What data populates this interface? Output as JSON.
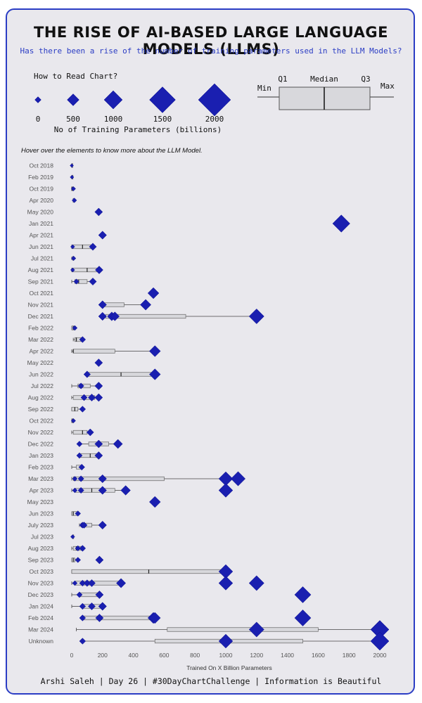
{
  "header": {
    "title": "THE RISE OF AI-BASED LARGE LANGUAGE MODELS (LLMS)",
    "subtitle": "Has there been a rise of the number of training parameters used in the LLM Models?"
  },
  "legend": {
    "how_to_read": "How to Read Chart?",
    "size_values": [
      "0",
      "500",
      "1000",
      "1500",
      "2000"
    ],
    "size_caption": "No of Training Parameters (billions)",
    "boxplot_labels": {
      "min": "Min",
      "q1": "Q1",
      "median": "Median",
      "q3": "Q3",
      "max": "Max"
    }
  },
  "hover_note": "Hover over the elements to know more about the LLM Model.",
  "footer": "Arshi Saleh | Day 26 | #30DayChartChallenge | Information is Beautiful",
  "colors": {
    "accent": "#1a1fb0",
    "box_fill": "#d8d8dc",
    "background": "#e9e8ed"
  },
  "chart_data": {
    "type": "box-and-scatter",
    "xlabel": "Trained On X Billion Parameters",
    "xlim": [
      0,
      2000
    ],
    "xticks": [
      0,
      200,
      400,
      600,
      800,
      1000,
      1200,
      1400,
      1600,
      1800,
      2000
    ],
    "grid": false,
    "rows": [
      {
        "label": "Oct 2018",
        "points": [
          0.34
        ],
        "box": [
          0.11,
          0.11,
          0.2,
          0.34,
          0.34
        ]
      },
      {
        "label": "Feb 2019",
        "points": [
          1.5
        ],
        "box": [
          1.5,
          1.5,
          1.5,
          1.5,
          1.5
        ]
      },
      {
        "label": "Oct 2019",
        "points": [
          11
        ],
        "box": [
          0.06,
          0.06,
          1.5,
          11,
          11
        ]
      },
      {
        "label": "Apr 2020",
        "points": [
          17
        ],
        "box": [
          9,
          9,
          17,
          17,
          17
        ]
      },
      {
        "label": "May 2020",
        "points": [
          175
        ],
        "box": null
      },
      {
        "label": "Jan 2021",
        "points": [
          1750
        ],
        "box": [
          1750,
          1750,
          1750,
          1750,
          1750
        ]
      },
      {
        "label": "Apr 2021",
        "points": [
          200
        ],
        "box": null
      },
      {
        "label": "Jun 2021",
        "points": [
          6,
          137
        ],
        "box": [
          0,
          0,
          70,
          137,
          137
        ]
      },
      {
        "label": "Jul 2021",
        "points": [
          12
        ],
        "box": [
          0,
          6,
          10,
          12,
          12
        ]
      },
      {
        "label": "Aug 2021",
        "points": [
          6,
          178
        ],
        "box": [
          0,
          0,
          100,
          178,
          178
        ]
      },
      {
        "label": "Sep 2021",
        "points": [
          30,
          137
        ],
        "box": [
          0,
          20,
          45,
          100,
          137
        ]
      },
      {
        "label": "Oct 2021",
        "points": [
          530
        ],
        "box": null
      },
      {
        "label": "Nov 2021",
        "points": [
          200,
          480
        ],
        "box": [
          200,
          200,
          200,
          340,
          480
        ]
      },
      {
        "label": "Dec 2021",
        "points": [
          200,
          260,
          280,
          1200
        ],
        "box": [
          200,
          220,
          280,
          740,
          1200
        ]
      },
      {
        "label": "Feb 2022",
        "points": [
          20
        ],
        "box": [
          0,
          0,
          10,
          20,
          20
        ]
      },
      {
        "label": "Mar 2022",
        "points": [
          70
        ],
        "box": [
          10,
          20,
          30,
          60,
          70
        ]
      },
      {
        "label": "Apr 2022",
        "points": [
          540
        ],
        "box": [
          0,
          10,
          10,
          280,
          540
        ]
      },
      {
        "label": "May 2022",
        "points": [
          175
        ],
        "box": null
      },
      {
        "label": "Jun 2022",
        "points": [
          100,
          540
        ],
        "box": [
          100,
          100,
          320,
          540,
          540
        ]
      },
      {
        "label": "Jul 2022",
        "points": [
          60,
          175
        ],
        "box": [
          0,
          40,
          60,
          120,
          175
        ]
      },
      {
        "label": "Aug 2022",
        "points": [
          80,
          130,
          175
        ],
        "box": [
          0,
          10,
          80,
          150,
          175
        ]
      },
      {
        "label": "Sep 2022",
        "points": [
          70
        ],
        "box": [
          0,
          0,
          20,
          40,
          70
        ]
      },
      {
        "label": "Oct 2022",
        "points": [
          11
        ],
        "box": [
          0,
          0,
          5,
          11,
          11
        ]
      },
      {
        "label": "Nov 2022",
        "points": [
          120
        ],
        "box": [
          0,
          10,
          70,
          100,
          120
        ]
      },
      {
        "label": "Dec 2022",
        "points": [
          50,
          175,
          300
        ],
        "box": [
          50,
          110,
          175,
          240,
          300
        ]
      },
      {
        "label": "Jan 2023",
        "points": [
          50,
          175
        ],
        "box": [
          50,
          60,
          120,
          175,
          175
        ]
      },
      {
        "label": "Feb 2023",
        "points": [
          65
        ],
        "box": [
          0,
          30,
          65,
          70,
          70
        ]
      },
      {
        "label": "Mar 2023",
        "points": [
          20,
          60,
          200,
          1000,
          1080
        ],
        "box": [
          0,
          10,
          60,
          600,
          1080
        ]
      },
      {
        "label": "Apr 2023",
        "points": [
          20,
          60,
          200,
          350,
          1000
        ],
        "box": [
          0,
          20,
          130,
          280,
          350
        ]
      },
      {
        "label": "May 2023",
        "points": [
          540
        ],
        "box": null
      },
      {
        "label": "Jun 2023",
        "points": [
          40
        ],
        "box": [
          0,
          0,
          10,
          40,
          40
        ]
      },
      {
        "label": "July 2023",
        "points": [
          70,
          80,
          200
        ],
        "box": [
          50,
          60,
          70,
          130,
          200
        ]
      },
      {
        "label": "Jul 2023",
        "points": [
          6
        ],
        "box": [
          6,
          6,
          6,
          6,
          6
        ]
      },
      {
        "label": "Aug 2023",
        "points": [
          40,
          70
        ],
        "box": [
          0,
          10,
          30,
          60,
          80
        ]
      },
      {
        "label": "Sep 2023",
        "points": [
          40,
          180
        ],
        "box": [
          0,
          0,
          10,
          20,
          20
        ]
      },
      {
        "label": "Oct 2023",
        "points": [
          1000
        ],
        "box": [
          0,
          0,
          500,
          1000,
          1000
        ]
      },
      {
        "label": "Nov 2023",
        "points": [
          20,
          70,
          100,
          130,
          320,
          1000,
          1200
        ],
        "box": [
          0,
          20,
          100,
          310,
          320
        ]
      },
      {
        "label": "Dec 2023",
        "points": [
          50,
          180,
          1500
        ],
        "box": [
          0,
          50,
          50,
          180,
          180
        ]
      },
      {
        "label": "Jan 2024",
        "points": [
          70,
          130,
          200
        ],
        "box": [
          0,
          70,
          130,
          200,
          200
        ]
      },
      {
        "label": "Feb 2024",
        "points": [
          70,
          180,
          530,
          540,
          1500
        ],
        "box": [
          70,
          70,
          180,
          520,
          540
        ]
      },
      {
        "label": "Mar 2024",
        "points": [
          1200,
          2000
        ],
        "box": [
          30,
          620,
          1200,
          1600,
          2000
        ]
      },
      {
        "label": "Unknown",
        "points": [
          70,
          1000,
          2000
        ],
        "box": [
          70,
          540,
          1000,
          1500,
          2000
        ]
      }
    ]
  }
}
